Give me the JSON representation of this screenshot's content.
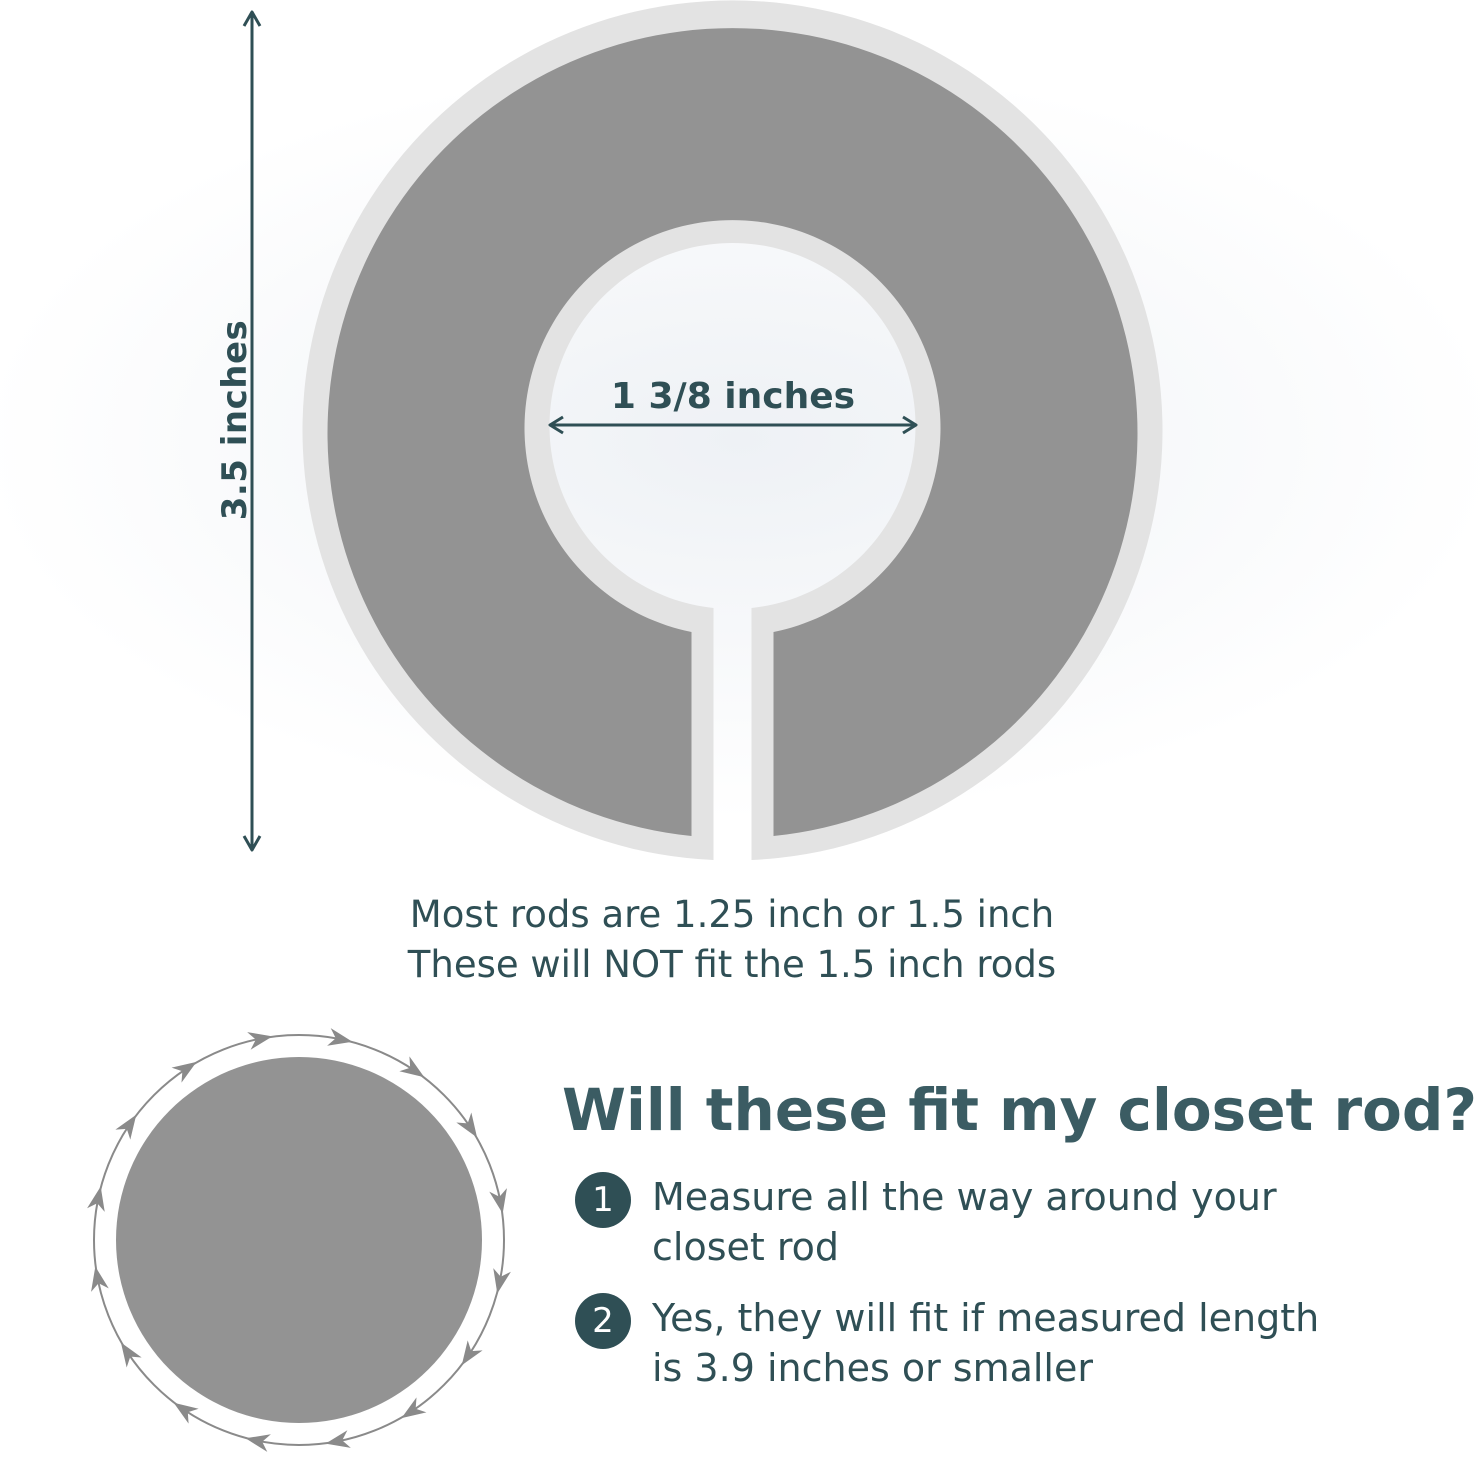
{
  "diagram": {
    "outer_dimension_label": "3.5 inches",
    "inner_dimension_label": "1 3/8 inches",
    "note_line1": "Most rods are 1.25 inch or 1.5 inch",
    "note_line2": "These will NOT fit the 1.5 inch rods"
  },
  "faq": {
    "heading": "Will these fit my closet rod?",
    "steps": [
      {
        "number": "1",
        "line1": "Measure all the way around your",
        "line2": "closet rod"
      },
      {
        "number": "2",
        "line1": "Yes, they will fit if measured length",
        "line2": "is 3.9 inches or smaller"
      }
    ]
  },
  "colors": {
    "text_dark": "#2f4f55",
    "heading": "#3b5c63",
    "divider_fill": "#939393",
    "divider_border": "#e3e3e3",
    "arrow_gray": "#8a8a8a"
  },
  "icons": {
    "rod_measure": "circular-measure-arrows-icon",
    "dimension_arrow": "double-headed-arrow-icon"
  }
}
